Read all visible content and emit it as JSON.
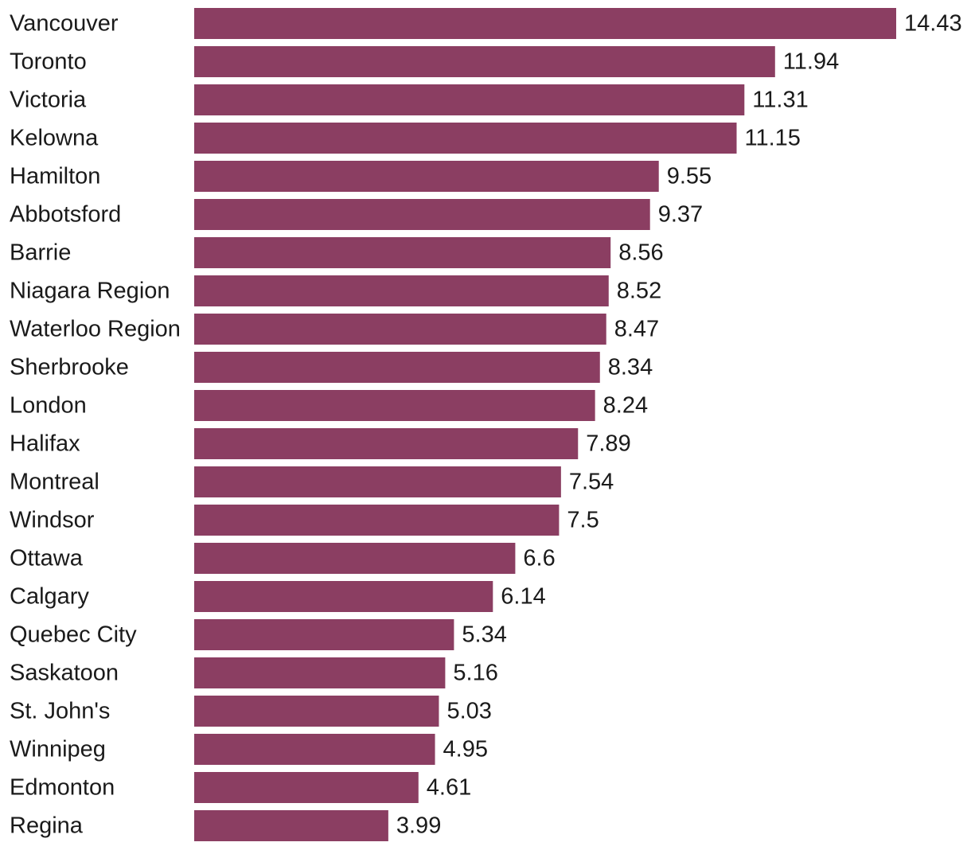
{
  "chart_data": {
    "type": "bar",
    "orientation": "horizontal",
    "title": "",
    "xlabel": "",
    "ylabel": "",
    "grid": false,
    "legend": false,
    "bar_color": "#8b3e62",
    "xlim": [
      0,
      14.43
    ],
    "categories": [
      "Vancouver",
      "Toronto",
      "Victoria",
      "Kelowna",
      "Hamilton",
      "Abbotsford",
      "Barrie",
      "Niagara Region",
      "Waterloo Region",
      "Sherbrooke",
      "London",
      "Halifax",
      "Montreal",
      "Windsor",
      "Ottawa",
      "Calgary",
      "Quebec City",
      "Saskatoon",
      "St. John's",
      "Winnipeg",
      "Edmonton",
      "Regina"
    ],
    "values": [
      14.43,
      11.94,
      11.31,
      11.15,
      9.55,
      9.37,
      8.56,
      8.52,
      8.47,
      8.34,
      8.24,
      7.89,
      7.54,
      7.5,
      6.6,
      6.14,
      5.34,
      5.16,
      5.03,
      4.95,
      4.61,
      3.99
    ],
    "value_labels": [
      "14.43",
      "11.94",
      "11.31",
      "11.15",
      "9.55",
      "9.37",
      "8.56",
      "8.52",
      "8.47",
      "8.34",
      "8.24",
      "7.89",
      "7.54",
      "7.5",
      "6.6",
      "6.14",
      "5.34",
      "5.16",
      "5.03",
      "4.95",
      "4.61",
      "3.99"
    ]
  }
}
